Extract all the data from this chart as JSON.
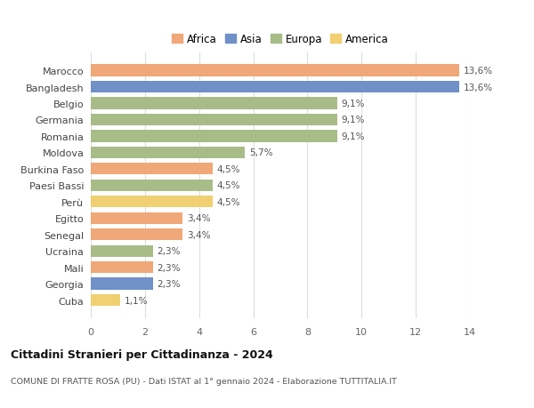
{
  "countries": [
    "Marocco",
    "Bangladesh",
    "Belgio",
    "Germania",
    "Romania",
    "Moldova",
    "Burkina Faso",
    "Paesi Bassi",
    "Perù",
    "Egitto",
    "Senegal",
    "Ucraina",
    "Mali",
    "Georgia",
    "Cuba"
  ],
  "values": [
    13.6,
    13.6,
    9.1,
    9.1,
    9.1,
    5.7,
    4.5,
    4.5,
    4.5,
    3.4,
    3.4,
    2.3,
    2.3,
    2.3,
    1.1
  ],
  "labels": [
    "13,6%",
    "13,6%",
    "9,1%",
    "9,1%",
    "9,1%",
    "5,7%",
    "4,5%",
    "4,5%",
    "4,5%",
    "3,4%",
    "3,4%",
    "2,3%",
    "2,3%",
    "2,3%",
    "1,1%"
  ],
  "continents": [
    "Africa",
    "Asia",
    "Europa",
    "Europa",
    "Europa",
    "Europa",
    "Africa",
    "Europa",
    "America",
    "Africa",
    "Africa",
    "Europa",
    "Africa",
    "Asia",
    "America"
  ],
  "colors": {
    "Africa": "#F0A878",
    "Asia": "#7090C8",
    "Europa": "#A8BC88",
    "America": "#F0D070"
  },
  "xlim": [
    0,
    14
  ],
  "xticks": [
    0,
    2,
    4,
    6,
    8,
    10,
    12,
    14
  ],
  "title": "Cittadini Stranieri per Cittadinanza - 2024",
  "subtitle": "COMUNE DI FRATTE ROSA (PU) - Dati ISTAT al 1° gennaio 2024 - Elaborazione TUTTITALIA.IT",
  "background_color": "#ffffff",
  "grid_color": "#dddddd",
  "bar_height": 0.72,
  "legend_order": [
    "Africa",
    "Asia",
    "Europa",
    "America"
  ]
}
